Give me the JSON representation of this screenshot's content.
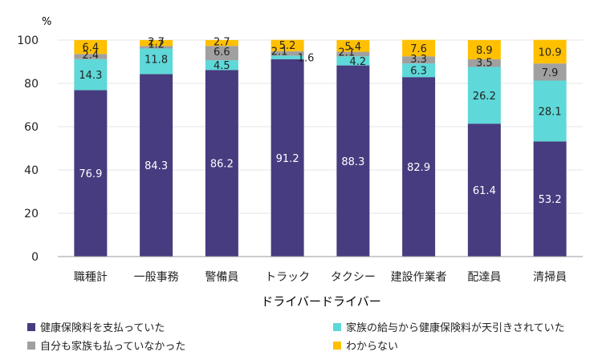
{
  "chart_data": {
    "type": "bar",
    "stacked": true,
    "unit": "%",
    "xlabel": "ドライバードライバー",
    "ylabel": "",
    "ylim": [
      0,
      100
    ],
    "yticks": [
      0,
      20,
      40,
      60,
      80,
      100
    ],
    "categories": [
      "職種計",
      "一般事務",
      "警備員",
      "トラック",
      "タクシー",
      "建設作業者",
      "配達員",
      "清掃員"
    ],
    "series": [
      {
        "name": "健康保険料を支払っていた",
        "color": "#463c7f",
        "values": [
          76.9,
          84.3,
          86.2,
          91.2,
          88.3,
          82.9,
          61.4,
          53.2
        ],
        "labels": [
          "76.9",
          "84.3",
          "86.2",
          "91.2",
          "88.3",
          "82.9",
          "61.4",
          "53.2"
        ]
      },
      {
        "name": "家族の給与から健康保険料が天引きされていた",
        "color": "#5ed8d8",
        "values": [
          14.3,
          11.8,
          4.5,
          1.6,
          4.2,
          6.3,
          26.2,
          28.1
        ],
        "labels": [
          "14.3",
          "11.8",
          "4.5",
          "1.6",
          "4.2",
          "6.3",
          "26.2",
          "28.1"
        ]
      },
      {
        "name": "自分も家族も払っていなかった",
        "color": "#a0a0a0",
        "values": [
          2.4,
          1.2,
          6.6,
          2.1,
          2.1,
          3.3,
          3.5,
          7.9
        ],
        "labels": [
          "2.4",
          "1.2",
          "6.6",
          "2.1",
          "2.1",
          "3.3",
          "3.5",
          "7.9"
        ]
      },
      {
        "name": "わからない",
        "color": "#ffc000",
        "values": [
          6.4,
          2.7,
          2.7,
          5.2,
          5.4,
          7.6,
          8.9,
          10.9
        ],
        "labels": [
          "6.4",
          "2.7",
          "2.7",
          "5.2",
          "5.4",
          "7.6",
          "8.9",
          "10.9"
        ]
      }
    ]
  }
}
